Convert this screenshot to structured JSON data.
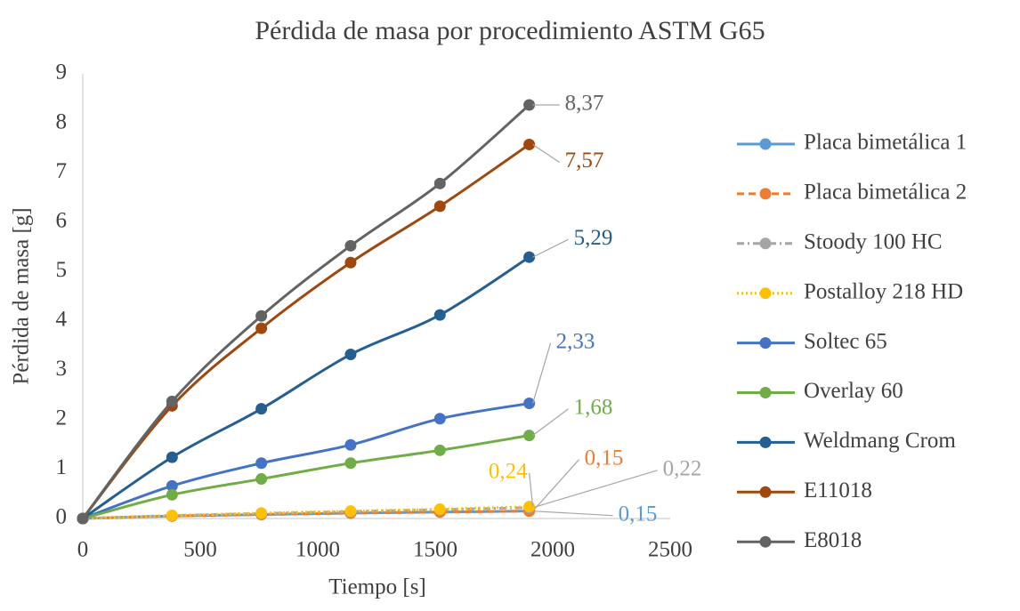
{
  "chart_data": {
    "type": "line",
    "title": "Pérdida de masa por procedimiento ASTM G65",
    "x_label": "Tiempo [s]",
    "y_label": "Pérdida de masa [g]",
    "x": [
      0,
      380,
      760,
      1140,
      1520,
      1900
    ],
    "xlim": [
      0,
      2500
    ],
    "xticks": [
      0,
      500,
      1000,
      1500,
      2000,
      2500
    ],
    "ylim": [
      0,
      9
    ],
    "yticks": [
      0,
      1,
      2,
      3,
      4,
      5,
      6,
      7,
      8,
      9
    ],
    "grid": false,
    "legend": "right",
    "smooth": true,
    "series": [
      {
        "name": "Placa bimetálica 1",
        "color": "#5b9bd5",
        "dash": "solid",
        "values": [
          0,
          0.05,
          0.08,
          0.11,
          0.13,
          0.15
        ],
        "value_labels": [
          null,
          null,
          null,
          null,
          null,
          "0,15"
        ]
      },
      {
        "name": "Placa bimetálica 2",
        "color": "#ed7d31",
        "dash": "dash",
        "values": [
          0,
          0.05,
          0.08,
          0.11,
          0.13,
          0.15
        ],
        "value_labels": [
          null,
          null,
          null,
          null,
          null,
          "0,15"
        ]
      },
      {
        "name": "Stoody 100 HC",
        "color": "#a5a5a5",
        "dash": "dashdot",
        "values": [
          0,
          0.06,
          0.1,
          0.14,
          0.18,
          0.22
        ],
        "value_labels": [
          null,
          null,
          null,
          null,
          null,
          "0,22"
        ]
      },
      {
        "name": "Postalloy 218 HD",
        "color": "#ffc000",
        "dash": "dot",
        "values": [
          0,
          0.06,
          0.11,
          0.15,
          0.19,
          0.24
        ],
        "value_labels": [
          null,
          null,
          null,
          null,
          null,
          "0,24"
        ]
      },
      {
        "name": "Soltec 65",
        "color": "#4472c4",
        "dash": "solid",
        "values": [
          0,
          0.66,
          1.12,
          1.49,
          2.02,
          2.33
        ],
        "value_labels": [
          null,
          null,
          null,
          null,
          null,
          "2,33"
        ]
      },
      {
        "name": "Overlay 60",
        "color": "#70ad47",
        "dash": "solid",
        "values": [
          0,
          0.48,
          0.8,
          1.12,
          1.38,
          1.68
        ],
        "value_labels": [
          null,
          null,
          null,
          null,
          null,
          "1,68"
        ]
      },
      {
        "name": "Weldmang Crom",
        "color": "#255e91",
        "dash": "solid",
        "values": [
          0,
          1.24,
          2.22,
          3.32,
          4.12,
          5.29
        ],
        "value_labels": [
          null,
          null,
          null,
          null,
          null,
          "5,29"
        ]
      },
      {
        "name": "E11018",
        "color": "#9e480e",
        "dash": "solid",
        "values": [
          0,
          2.28,
          3.85,
          5.18,
          6.32,
          7.57
        ],
        "value_labels": [
          null,
          null,
          null,
          null,
          null,
          "7,57"
        ]
      },
      {
        "name": "E8018",
        "color": "#636363",
        "dash": "solid",
        "values": [
          0,
          2.37,
          4.1,
          5.52,
          6.78,
          8.37
        ],
        "value_labels": [
          null,
          null,
          null,
          null,
          null,
          "8,37"
        ]
      }
    ]
  }
}
